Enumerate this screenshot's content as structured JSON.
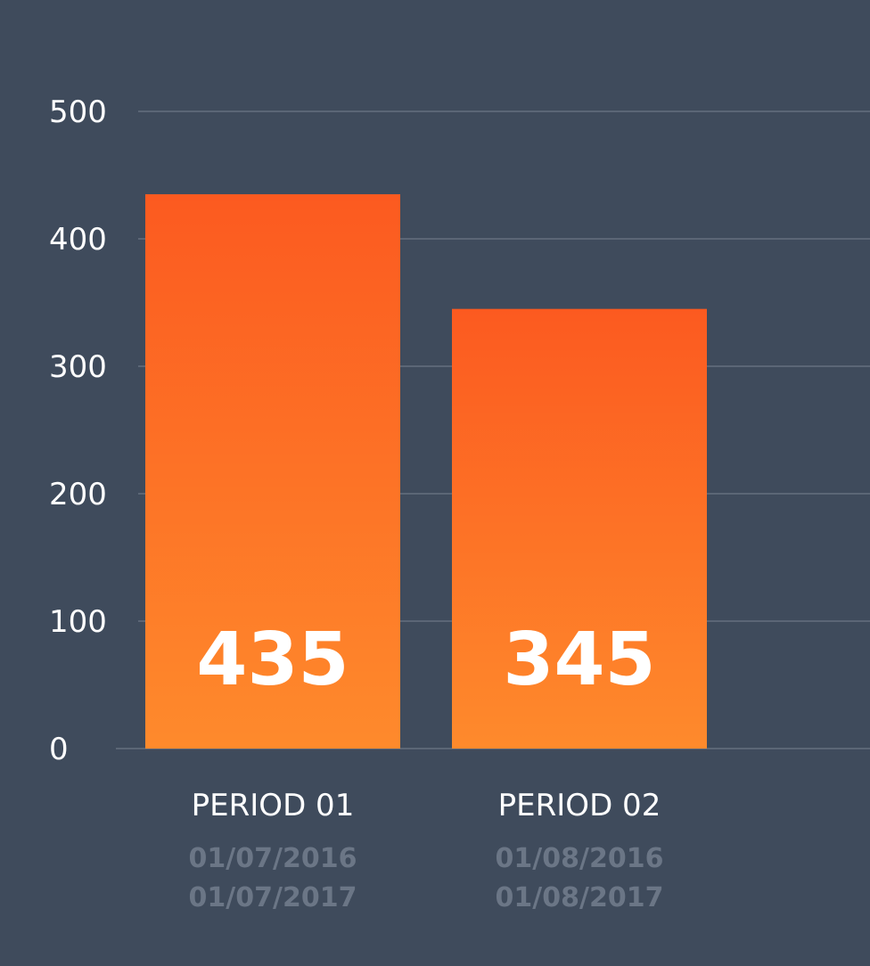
{
  "chart_data": {
    "type": "bar",
    "categories": [
      "PERIOD 01",
      "PERIOD 02"
    ],
    "category_dates": [
      [
        "01/07/2016",
        "01/07/2017"
      ],
      [
        "01/08/2016",
        "01/08/2017"
      ]
    ],
    "values": [
      435,
      345
    ],
    "value_labels": [
      "435",
      "345"
    ],
    "yticks": [
      "0",
      "100",
      "200",
      "300",
      "400",
      "500"
    ],
    "ylim": [
      0,
      500
    ],
    "grid": true,
    "title": "",
    "xlabel": "",
    "ylabel": "",
    "colors": {
      "background": "#3f4b5c",
      "grid": "#5b6676",
      "bar_top": "#fc5a20",
      "bar_bottom": "#fe8a2c",
      "date_text": "#6b7686"
    }
  }
}
